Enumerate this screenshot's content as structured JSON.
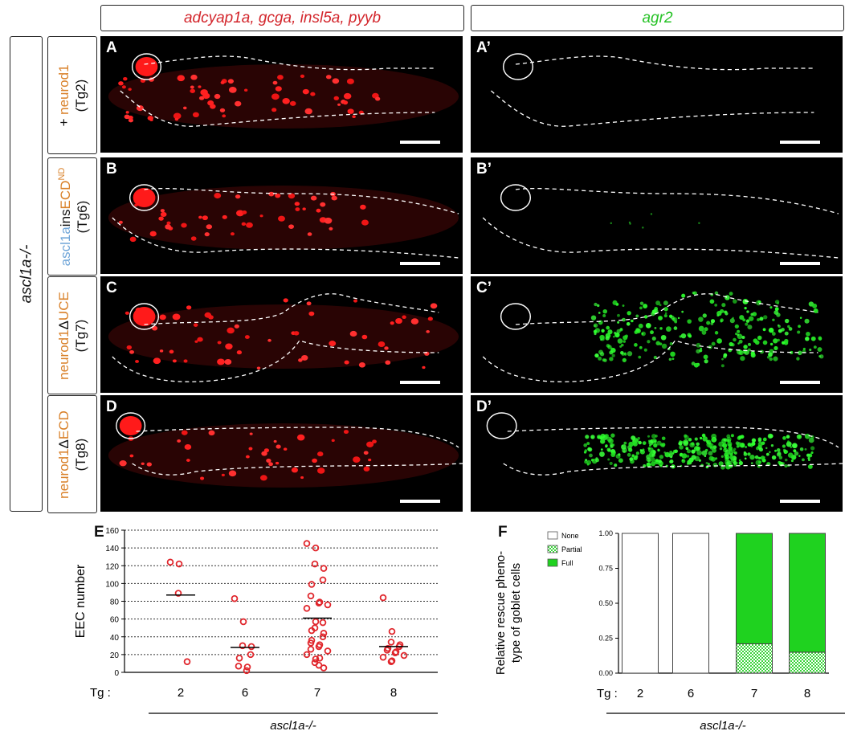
{
  "headers": {
    "left": "adcyap1a, gcga, insl5a, pyyb",
    "right": "agr2"
  },
  "genotype_label": "ascl1a-/-",
  "rows": [
    {
      "label_line1_parts": [
        {
          "t": "+ ",
          "c": "black"
        },
        {
          "t": "neurod1",
          "c": "orange"
        }
      ],
      "label_line2": "(Tg2)",
      "left": "A",
      "right": "A’"
    },
    {
      "label_line1_parts": [
        {
          "t": "ascl1a",
          "c": "blue"
        },
        {
          "t": "ins",
          "c": "black"
        },
        {
          "t": "ECD",
          "c": "orange"
        },
        {
          "t": "ND",
          "c": "orange",
          "sup": true
        }
      ],
      "label_line2": "(Tg6)",
      "left": "B",
      "right": "B’"
    },
    {
      "label_line1_parts": [
        {
          "t": "neurod1",
          "c": "orange"
        },
        {
          "t": "Δ",
          "c": "black"
        },
        {
          "t": "UCE",
          "c": "orange"
        }
      ],
      "label_line2": "(Tg7)",
      "left": "C",
      "right": "C’"
    },
    {
      "label_line1_parts": [
        {
          "t": "neurod1",
          "c": "orange"
        },
        {
          "t": "Δ",
          "c": "black"
        },
        {
          "t": "ECD",
          "c": "orange"
        }
      ],
      "label_line2": "(Tg8)",
      "left": "D",
      "right": "D’"
    }
  ],
  "chart_data": [
    {
      "panel": "E",
      "type": "scatter",
      "ylabel": "EEC number",
      "ylim": [
        0,
        160
      ],
      "yticks": [
        "0",
        "20",
        "40",
        "60",
        "80",
        "100",
        "120",
        "140",
        "160"
      ],
      "grid": true,
      "xlabel_prefix": "Tg :",
      "categories": [
        "2",
        "6",
        "7",
        "8"
      ],
      "points": {
        "2": [
          124,
          122,
          89,
          12
        ],
        "6": [
          83,
          57,
          30,
          29,
          20,
          16,
          7,
          6,
          2
        ],
        "7": [
          145,
          140,
          122,
          117,
          104,
          99,
          86,
          79,
          78,
          76,
          72,
          57,
          50,
          44,
          40,
          36,
          33,
          31,
          29,
          24,
          20,
          15,
          11,
          5
        ],
        "8": [
          84,
          46,
          34,
          31,
          29,
          27,
          25,
          23,
          22,
          19,
          17,
          13,
          12
        ],
        "7_extra": [
          56,
          47,
          26,
          16,
          8
        ]
      },
      "means": {
        "2": 87,
        "6": 28,
        "7": 61,
        "8": 29
      },
      "bottom_label": "ascl1a-/-"
    },
    {
      "panel": "F",
      "type": "bar",
      "stacked": true,
      "ylabel": "Relative rescue pheno-type of goblet cells",
      "ylabel_lines": [
        "Relative rescue pheno-",
        "type of goblet cells"
      ],
      "ylim": [
        0,
        1
      ],
      "yticks": [
        "0.00",
        "0.25",
        "0.50",
        "0.75",
        "1.00"
      ],
      "xlabel_prefix": "Tg :",
      "categories": [
        "2",
        "6",
        "7",
        "8"
      ],
      "series": [
        {
          "name": "None",
          "values": [
            1.0,
            1.0,
            0.0,
            0.0
          ],
          "color": "#ffffff"
        },
        {
          "name": "Partial",
          "values": [
            0.0,
            0.0,
            0.21,
            0.15
          ],
          "color": "#9fe39f"
        },
        {
          "name": "Full",
          "values": [
            0.0,
            0.0,
            0.79,
            0.85
          ],
          "color": "#1fd21f"
        }
      ],
      "legend": "top-left",
      "bottom_label": "ascl1a-/-"
    }
  ]
}
